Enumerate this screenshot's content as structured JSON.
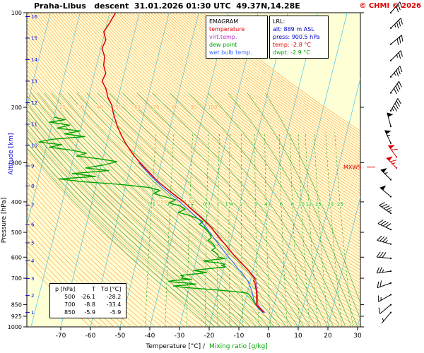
{
  "header": {
    "title": "Praha-Libus   descent  31.01.2026 01:30 UTC  49.37N,14.28E",
    "copyright": "© CHMI © 2026"
  },
  "colors": {
    "temperature": "#dd0000",
    "virtual_temperature": "#bb33cc",
    "dew_point": "#00a400",
    "wet_bulb": "#3366ff",
    "isotherm": "#44c8f0",
    "dry_adiabat": "#ff9a40",
    "moist_adiabat": "#33aa33",
    "mixing_ratio": "#00a400",
    "plot_bg": "#ffffd6",
    "altitude": "#0000e0",
    "mxws": "#dd0000",
    "copyright": "#dd0000",
    "axis_black": "#000000"
  },
  "legend": {
    "title": "EMAGRAM",
    "items": [
      {
        "label": "temperature",
        "color": "#dd0000"
      },
      {
        "label": "virt.temp.",
        "color": "#bb33cc"
      },
      {
        "label": "dew point",
        "color": "#00a400"
      },
      {
        "label": "wet bulb temp.",
        "color": "#3366ff"
      }
    ]
  },
  "lrl": {
    "title": "LRL:",
    "lines": [
      {
        "text": "alt: 889 m ASL",
        "color": "#0000cc"
      },
      {
        "text": "press: 900.5 hPa",
        "color": "#0000cc"
      },
      {
        "text": "temp: -2.8 °C",
        "color": "#dd0000"
      },
      {
        "text": "dwpt: -2.9 °C",
        "color": "#00a400"
      }
    ]
  },
  "level_table": {
    "header": [
      "p [hPa]",
      "T",
      "Td [°C]"
    ],
    "rows": [
      [
        "500",
        "-26.1",
        "-28.2"
      ],
      [
        "700",
        "-8.8",
        "-33.4"
      ],
      [
        "850",
        "-5.9",
        "-5.9"
      ]
    ]
  },
  "axes": {
    "pressure_title": "Pressure [hPa]",
    "altitude_title": "Altitude [km]",
    "x_title_temp": "Temperature [°C] /",
    "x_title_mixing": "Mixing ratio [g/kg]"
  },
  "chart_data": {
    "type": "skewt_emagram",
    "title": "EMAGRAM",
    "station": "Praha-Libus",
    "sounding_type": "descent",
    "datetime_utc": "31.01.2026 01:30 UTC",
    "location": "49.37N,14.28E",
    "pressure_ticks": [
      100,
      200,
      300,
      400,
      500,
      600,
      700,
      850,
      925,
      1000
    ],
    "altitude_ticks_km": [
      1,
      2,
      3,
      4,
      5,
      6,
      7,
      8,
      9,
      10,
      11,
      12,
      13,
      14,
      15,
      16
    ],
    "temp_ticks": [
      -70,
      -60,
      -50,
      -40,
      -30,
      -20,
      -10,
      0,
      10,
      20,
      30
    ],
    "isotherms": {
      "start": -120,
      "end": 40,
      "step": 10
    },
    "dry_adiabats": {
      "start": -60,
      "end": 160,
      "step": 2,
      "labels_at_200hPa": [
        20,
        30,
        40,
        50,
        60,
        70,
        80,
        90,
        100
      ],
      "labels_at_400hPa": [
        20,
        22,
        24,
        26,
        28,
        30,
        32,
        34
      ]
    },
    "moist_adiabats": {
      "start": -20,
      "end": 34,
      "step": 2
    },
    "mixing_ratio": {
      "values": [
        0.1,
        0.2,
        0.4,
        0.7,
        1,
        1.4,
        2,
        3,
        4,
        6,
        8,
        10,
        12,
        15,
        20,
        25
      ],
      "label_pressure_hPa": 408
    },
    "surface": {
      "pressure_hPa": 900.5,
      "alt_m_asl": 889,
      "temp_c": -2.8,
      "dwpt_c": -2.9
    },
    "series": {
      "temperature": [
        [
          100,
          -78
        ],
        [
          108,
          -79.2
        ],
        [
          115,
          -80.4
        ],
        [
          122,
          -79.0
        ],
        [
          130,
          -79.6
        ],
        [
          138,
          -78.0
        ],
        [
          147,
          -77.6
        ],
        [
          156,
          -76.2
        ],
        [
          165,
          -76.8
        ],
        [
          175,
          -74.8
        ],
        [
          186,
          -73.5
        ],
        [
          197,
          -71.5
        ],
        [
          208,
          -70.4
        ],
        [
          220,
          -69.0
        ],
        [
          232,
          -67.6
        ],
        [
          245,
          -65.8
        ],
        [
          258,
          -64.0
        ],
        [
          272,
          -61.8
        ],
        [
          286,
          -59.6
        ],
        [
          300,
          -57.2
        ],
        [
          315,
          -54.6
        ],
        [
          330,
          -52.0
        ],
        [
          346,
          -49.2
        ],
        [
          362,
          -46.2
        ],
        [
          379,
          -43.0
        ],
        [
          396,
          -39.8
        ],
        [
          414,
          -37.0
        ],
        [
          432,
          -34.4
        ],
        [
          450,
          -31.8
        ],
        [
          468,
          -29.4
        ],
        [
          486,
          -27.2
        ],
        [
          500,
          -26.1
        ],
        [
          515,
          -24.6
        ],
        [
          530,
          -23.2
        ],
        [
          546,
          -21.6
        ],
        [
          562,
          -20.2
        ],
        [
          578,
          -18.8
        ],
        [
          595,
          -17.4
        ],
        [
          612,
          -15.8
        ],
        [
          630,
          -14.2
        ],
        [
          648,
          -12.6
        ],
        [
          666,
          -11.2
        ],
        [
          684,
          -9.9
        ],
        [
          700,
          -8.8
        ],
        [
          715,
          -8.9
        ],
        [
          722,
          -8.4
        ],
        [
          735,
          -8.0
        ],
        [
          748,
          -7.7
        ],
        [
          762,
          -7.3
        ],
        [
          775,
          -7.0
        ],
        [
          790,
          -6.7
        ],
        [
          805,
          -6.6
        ],
        [
          818,
          -6.3
        ],
        [
          832,
          -6.1
        ],
        [
          845,
          -6.0
        ],
        [
          850,
          -5.9
        ],
        [
          858,
          -5.5
        ],
        [
          866,
          -5.0
        ],
        [
          875,
          -4.4
        ],
        [
          884,
          -3.8
        ],
        [
          893,
          -3.2
        ],
        [
          900.5,
          -2.8
        ]
      ],
      "dew_point": [
        [
          215,
          -90
        ],
        [
          219,
          -86
        ],
        [
          223,
          -91
        ],
        [
          228,
          -84
        ],
        [
          233,
          -88
        ],
        [
          238,
          -80
        ],
        [
          243,
          -85
        ],
        [
          248,
          -78
        ],
        [
          253,
          -89
        ],
        [
          258,
          -93
        ],
        [
          263,
          -85
        ],
        [
          268,
          -89
        ],
        [
          274,
          -81
        ],
        [
          280,
          -76
        ],
        [
          286,
          -79
        ],
        [
          292,
          -71
        ],
        [
          298,
          -65
        ],
        [
          305,
          -69
        ],
        [
          312,
          -75
        ],
        [
          318,
          -67
        ],
        [
          325,
          -79
        ],
        [
          332,
          -71
        ],
        [
          338,
          -83
        ],
        [
          345,
          -75
        ],
        [
          352,
          -62
        ],
        [
          360,
          -52
        ],
        [
          368,
          -48
        ],
        [
          376,
          -50
        ],
        [
          385,
          -46
        ],
        [
          394,
          -42
        ],
        [
          403,
          -44
        ],
        [
          412,
          -40
        ],
        [
          422,
          -38
        ],
        [
          432,
          -40
        ],
        [
          442,
          -36
        ],
        [
          452,
          -33
        ],
        [
          462,
          -31
        ],
        [
          472,
          -32
        ],
        [
          482,
          -30
        ],
        [
          492,
          -29
        ],
        [
          500,
          -28.2
        ],
        [
          510,
          -27.4
        ],
        [
          520,
          -26.8
        ],
        [
          530,
          -27.6
        ],
        [
          540,
          -26.2
        ],
        [
          550,
          -25.2
        ],
        [
          560,
          -24.6
        ],
        [
          570,
          -25.6
        ],
        [
          580,
          -24.2
        ],
        [
          590,
          -23.2
        ],
        [
          600,
          -22.6
        ],
        [
          606,
          -20.5
        ],
        [
          611,
          -24
        ],
        [
          616,
          -27.5
        ],
        [
          621,
          -25.5
        ],
        [
          626,
          -22
        ],
        [
          632,
          -20
        ],
        [
          638,
          -21
        ],
        [
          644,
          -19.5
        ],
        [
          650,
          -23
        ],
        [
          656,
          -27
        ],
        [
          661,
          -30
        ],
        [
          666,
          -28
        ],
        [
          671,
          -25.5
        ],
        [
          676,
          -27.5
        ],
        [
          681,
          -31
        ],
        [
          686,
          -34
        ],
        [
          692,
          -33
        ],
        [
          700,
          -33.4
        ],
        [
          706,
          -30
        ],
        [
          711,
          -35.5
        ],
        [
          716,
          -37.5
        ],
        [
          721,
          -35
        ],
        [
          726,
          -30.5
        ],
        [
          731,
          -28
        ],
        [
          736,
          -31.5
        ],
        [
          741,
          -35.5
        ],
        [
          746,
          -33.5
        ],
        [
          751,
          -30
        ],
        [
          756,
          -26
        ],
        [
          761,
          -22
        ],
        [
          766,
          -18.5
        ],
        [
          771,
          -15
        ],
        [
          776,
          -12
        ],
        [
          781,
          -10
        ],
        [
          790,
          -9.2
        ],
        [
          800,
          -8.6
        ],
        [
          810,
          -8.1
        ],
        [
          820,
          -7.6
        ],
        [
          830,
          -7.1
        ],
        [
          840,
          -6.5
        ],
        [
          850,
          -5.9
        ],
        [
          858,
          -5.6
        ],
        [
          866,
          -5.1
        ],
        [
          875,
          -4.5
        ],
        [
          884,
          -3.9
        ],
        [
          893,
          -3.3
        ],
        [
          900.5,
          -2.9
        ]
      ],
      "wet_bulb": [
        [
          300,
          -57.6
        ],
        [
          330,
          -52.6
        ],
        [
          360,
          -47.4
        ],
        [
          390,
          -42.0
        ],
        [
          420,
          -37.4
        ],
        [
          450,
          -33.2
        ],
        [
          480,
          -29.6
        ],
        [
          500,
          -27.8
        ],
        [
          530,
          -25.2
        ],
        [
          560,
          -22.6
        ],
        [
          590,
          -20.2
        ],
        [
          620,
          -17.6
        ],
        [
          650,
          -15.4
        ],
        [
          680,
          -13.0
        ],
        [
          700,
          -11.8
        ],
        [
          720,
          -10.6
        ],
        [
          740,
          -9.8
        ],
        [
          760,
          -9.0
        ],
        [
          780,
          -8.3
        ],
        [
          800,
          -7.8
        ],
        [
          820,
          -7.2
        ],
        [
          840,
          -6.6
        ],
        [
          850,
          -6.2
        ],
        [
          865,
          -5.4
        ],
        [
          880,
          -4.5
        ],
        [
          893,
          -3.6
        ],
        [
          900.5,
          -3.1
        ]
      ],
      "virtual_temperature": [
        [
          300,
          -57.1
        ],
        [
          350,
          -48.6
        ],
        [
          400,
          -39.2
        ],
        [
          450,
          -31.6
        ],
        [
          500,
          -25.9
        ],
        [
          550,
          -21.2
        ],
        [
          600,
          -16.9
        ],
        [
          650,
          -12.4
        ],
        [
          700,
          -8.5
        ],
        [
          750,
          -7.3
        ],
        [
          800,
          -6.3
        ],
        [
          850,
          -5.5
        ],
        [
          875,
          -4.1
        ],
        [
          900.5,
          -2.4
        ]
      ]
    },
    "wind_barbs": [
      {
        "p": 100,
        "dir": 40,
        "spd": 30
      },
      {
        "p": 112,
        "dir": 45,
        "spd": 35
      },
      {
        "p": 126,
        "dir": 50,
        "spd": 30
      },
      {
        "p": 142,
        "dir": 45,
        "spd": 25
      },
      {
        "p": 160,
        "dir": 40,
        "spd": 35
      },
      {
        "p": 180,
        "dir": 35,
        "spd": 40
      },
      {
        "p": 205,
        "dir": 30,
        "spd": 45
      },
      {
        "p": 230,
        "dir": 345,
        "spd": 50
      },
      {
        "p": 260,
        "dir": 335,
        "spd": 55
      },
      {
        "p": 288,
        "dir": 325,
        "spd": 60,
        "red": true
      },
      {
        "p": 312,
        "dir": 315,
        "spd": 65,
        "red": true
      },
      {
        "p": 340,
        "dir": 315,
        "spd": 55
      },
      {
        "p": 385,
        "dir": 310,
        "spd": 50
      },
      {
        "p": 435,
        "dir": 305,
        "spd": 45
      },
      {
        "p": 490,
        "dir": 295,
        "spd": 40
      },
      {
        "p": 545,
        "dir": 285,
        "spd": 35
      },
      {
        "p": 605,
        "dir": 275,
        "spd": 30
      },
      {
        "p": 665,
        "dir": 262,
        "spd": 25
      },
      {
        "p": 725,
        "dir": 250,
        "spd": 20
      },
      {
        "p": 790,
        "dir": 240,
        "spd": 15
      },
      {
        "p": 850,
        "dir": 230,
        "spd": 10
      },
      {
        "p": 900,
        "dir": 220,
        "spd": 5
      }
    ],
    "mxws": {
      "label": "MXWS",
      "pressure_hPa": 310
    }
  }
}
